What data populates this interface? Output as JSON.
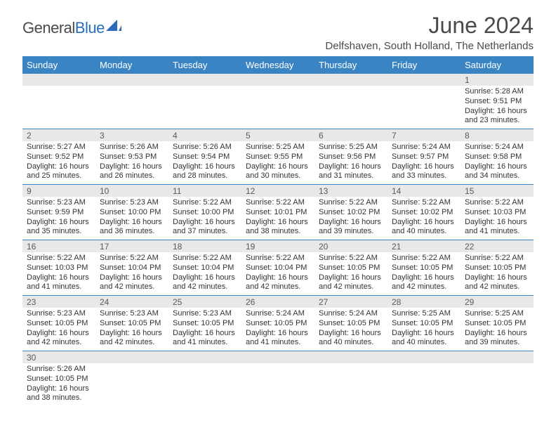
{
  "logo": {
    "text_gray": "General",
    "text_blue": "Blue"
  },
  "title": "June 2024",
  "location": "Delfshaven, South Holland, The Netherlands",
  "colors": {
    "header_bg": "#3b84c4",
    "header_text": "#ffffff",
    "daynum_bg": "#e8e8e8",
    "daynum_text": "#5a5a5a",
    "body_text": "#333333",
    "row_border": "#3b84c4",
    "logo_gray": "#4a4a4a",
    "logo_blue": "#2a6ebb"
  },
  "typography": {
    "title_fontsize": 32,
    "location_fontsize": 15,
    "weekday_fontsize": 13,
    "daynum_fontsize": 12,
    "detail_fontsize": 11
  },
  "weekdays": [
    "Sunday",
    "Monday",
    "Tuesday",
    "Wednesday",
    "Thursday",
    "Friday",
    "Saturday"
  ],
  "weeks": [
    {
      "nums": [
        "",
        "",
        "",
        "",
        "",
        "",
        "1"
      ],
      "details": [
        "",
        "",
        "",
        "",
        "",
        "",
        "Sunrise: 5:28 AM\nSunset: 9:51 PM\nDaylight: 16 hours and 23 minutes."
      ]
    },
    {
      "nums": [
        "2",
        "3",
        "4",
        "5",
        "6",
        "7",
        "8"
      ],
      "details": [
        "Sunrise: 5:27 AM\nSunset: 9:52 PM\nDaylight: 16 hours and 25 minutes.",
        "Sunrise: 5:26 AM\nSunset: 9:53 PM\nDaylight: 16 hours and 26 minutes.",
        "Sunrise: 5:26 AM\nSunset: 9:54 PM\nDaylight: 16 hours and 28 minutes.",
        "Sunrise: 5:25 AM\nSunset: 9:55 PM\nDaylight: 16 hours and 30 minutes.",
        "Sunrise: 5:25 AM\nSunset: 9:56 PM\nDaylight: 16 hours and 31 minutes.",
        "Sunrise: 5:24 AM\nSunset: 9:57 PM\nDaylight: 16 hours and 33 minutes.",
        "Sunrise: 5:24 AM\nSunset: 9:58 PM\nDaylight: 16 hours and 34 minutes."
      ]
    },
    {
      "nums": [
        "9",
        "10",
        "11",
        "12",
        "13",
        "14",
        "15"
      ],
      "details": [
        "Sunrise: 5:23 AM\nSunset: 9:59 PM\nDaylight: 16 hours and 35 minutes.",
        "Sunrise: 5:23 AM\nSunset: 10:00 PM\nDaylight: 16 hours and 36 minutes.",
        "Sunrise: 5:22 AM\nSunset: 10:00 PM\nDaylight: 16 hours and 37 minutes.",
        "Sunrise: 5:22 AM\nSunset: 10:01 PM\nDaylight: 16 hours and 38 minutes.",
        "Sunrise: 5:22 AM\nSunset: 10:02 PM\nDaylight: 16 hours and 39 minutes.",
        "Sunrise: 5:22 AM\nSunset: 10:02 PM\nDaylight: 16 hours and 40 minutes.",
        "Sunrise: 5:22 AM\nSunset: 10:03 PM\nDaylight: 16 hours and 41 minutes."
      ]
    },
    {
      "nums": [
        "16",
        "17",
        "18",
        "19",
        "20",
        "21",
        "22"
      ],
      "details": [
        "Sunrise: 5:22 AM\nSunset: 10:03 PM\nDaylight: 16 hours and 41 minutes.",
        "Sunrise: 5:22 AM\nSunset: 10:04 PM\nDaylight: 16 hours and 42 minutes.",
        "Sunrise: 5:22 AM\nSunset: 10:04 PM\nDaylight: 16 hours and 42 minutes.",
        "Sunrise: 5:22 AM\nSunset: 10:04 PM\nDaylight: 16 hours and 42 minutes.",
        "Sunrise: 5:22 AM\nSunset: 10:05 PM\nDaylight: 16 hours and 42 minutes.",
        "Sunrise: 5:22 AM\nSunset: 10:05 PM\nDaylight: 16 hours and 42 minutes.",
        "Sunrise: 5:22 AM\nSunset: 10:05 PM\nDaylight: 16 hours and 42 minutes."
      ]
    },
    {
      "nums": [
        "23",
        "24",
        "25",
        "26",
        "27",
        "28",
        "29"
      ],
      "details": [
        "Sunrise: 5:23 AM\nSunset: 10:05 PM\nDaylight: 16 hours and 42 minutes.",
        "Sunrise: 5:23 AM\nSunset: 10:05 PM\nDaylight: 16 hours and 42 minutes.",
        "Sunrise: 5:23 AM\nSunset: 10:05 PM\nDaylight: 16 hours and 41 minutes.",
        "Sunrise: 5:24 AM\nSunset: 10:05 PM\nDaylight: 16 hours and 41 minutes.",
        "Sunrise: 5:24 AM\nSunset: 10:05 PM\nDaylight: 16 hours and 40 minutes.",
        "Sunrise: 5:25 AM\nSunset: 10:05 PM\nDaylight: 16 hours and 40 minutes.",
        "Sunrise: 5:25 AM\nSunset: 10:05 PM\nDaylight: 16 hours and 39 minutes."
      ]
    },
    {
      "nums": [
        "30",
        "",
        "",
        "",
        "",
        "",
        ""
      ],
      "details": [
        "Sunrise: 5:26 AM\nSunset: 10:05 PM\nDaylight: 16 hours and 38 minutes.",
        "",
        "",
        "",
        "",
        "",
        ""
      ]
    }
  ]
}
